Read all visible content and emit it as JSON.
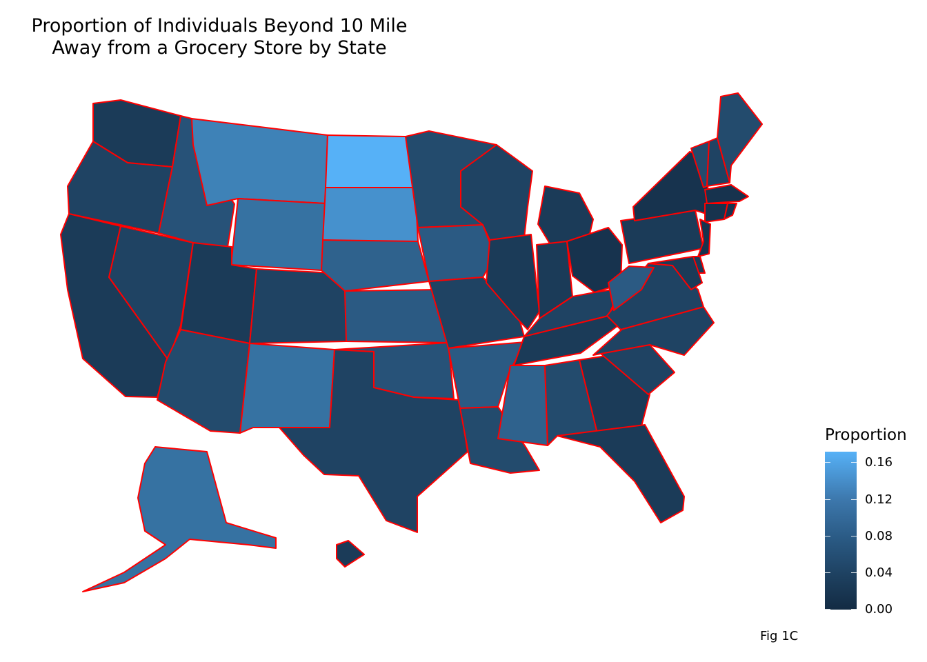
{
  "title_line1": "Proportion of Individuals Beyond 10 Mile",
  "title_line2": "Away from a Grocery Store by State",
  "legend": {
    "title": "Proportion",
    "ticks": [
      "0.16",
      "0.12",
      "0.08",
      "0.04",
      "0.00"
    ],
    "low_color": "#132b43",
    "high_color": "#56b1f7"
  },
  "caption": "Fig 1C",
  "border_color": "#ff0000",
  "map_data": {
    "type": "choropleth",
    "scale_min": 0.0,
    "scale_max": 0.17,
    "states": [
      {
        "state": "WA",
        "value": 0.02
      },
      {
        "state": "OR",
        "value": 0.03
      },
      {
        "state": "CA",
        "value": 0.02
      },
      {
        "state": "NV",
        "value": 0.03
      },
      {
        "state": "ID",
        "value": 0.05
      },
      {
        "state": "MT",
        "value": 0.11
      },
      {
        "state": "WY",
        "value": 0.09
      },
      {
        "state": "UT",
        "value": 0.02
      },
      {
        "state": "AZ",
        "value": 0.04
      },
      {
        "state": "CO",
        "value": 0.03
      },
      {
        "state": "NM",
        "value": 0.09
      },
      {
        "state": "ND",
        "value": 0.17
      },
      {
        "state": "SD",
        "value": 0.13
      },
      {
        "state": "NE",
        "value": 0.07
      },
      {
        "state": "KS",
        "value": 0.06
      },
      {
        "state": "OK",
        "value": 0.05
      },
      {
        "state": "TX",
        "value": 0.03
      },
      {
        "state": "MN",
        "value": 0.04
      },
      {
        "state": "IA",
        "value": 0.06
      },
      {
        "state": "MO",
        "value": 0.03
      },
      {
        "state": "AR",
        "value": 0.06
      },
      {
        "state": "LA",
        "value": 0.04
      },
      {
        "state": "WI",
        "value": 0.03
      },
      {
        "state": "IL",
        "value": 0.02
      },
      {
        "state": "MI",
        "value": 0.02
      },
      {
        "state": "IN",
        "value": 0.02
      },
      {
        "state": "OH",
        "value": 0.01
      },
      {
        "state": "KY",
        "value": 0.03
      },
      {
        "state": "TN",
        "value": 0.02
      },
      {
        "state": "MS",
        "value": 0.07
      },
      {
        "state": "AL",
        "value": 0.04
      },
      {
        "state": "GA",
        "value": 0.02
      },
      {
        "state": "FL",
        "value": 0.02
      },
      {
        "state": "SC",
        "value": 0.03
      },
      {
        "state": "NC",
        "value": 0.03
      },
      {
        "state": "VA",
        "value": 0.03
      },
      {
        "state": "WV",
        "value": 0.06
      },
      {
        "state": "PA",
        "value": 0.02
      },
      {
        "state": "NY",
        "value": 0.01
      },
      {
        "state": "VT",
        "value": 0.04
      },
      {
        "state": "NH",
        "value": 0.03
      },
      {
        "state": "ME",
        "value": 0.04
      },
      {
        "state": "MA",
        "value": 0.01
      },
      {
        "state": "CT",
        "value": 0.01
      },
      {
        "state": "RI",
        "value": 0.01
      },
      {
        "state": "NJ",
        "value": 0.01
      },
      {
        "state": "DE",
        "value": 0.02
      },
      {
        "state": "MD",
        "value": 0.02
      },
      {
        "state": "AK",
        "value": 0.09
      },
      {
        "state": "HI",
        "value": 0.02
      }
    ]
  }
}
